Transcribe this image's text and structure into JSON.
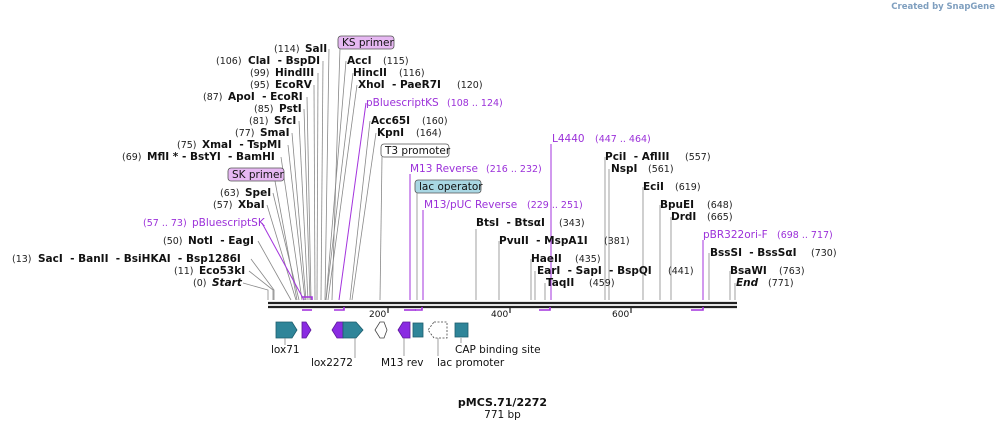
{
  "credit": {
    "prefix": "Created by",
    "brand": "SnapGene"
  },
  "sequence": {
    "name": "pMCS.71/2272",
    "length_label": "771 bp",
    "length": 771
  },
  "ruler": {
    "ticks": [
      200,
      400,
      600
    ]
  },
  "enzymes": [
    {
      "name": "Start",
      "pos": "(0)",
      "italic": true
    },
    {
      "name": "Eco53kI",
      "pos": "(11)"
    },
    {
      "name": "SacI  - BanII  - BsiHKAI  - Bsp1286I",
      "pos": "(13)"
    },
    {
      "name": "NotI  - EagI",
      "pos": "(50)"
    },
    {
      "name": "XbaI",
      "pos": "(57)"
    },
    {
      "name": "SpeI",
      "pos": "(63)"
    },
    {
      "name": "MflI * - BstYI  - BamHI",
      "pos": "(69)"
    },
    {
      "name": "XmaI  - TspMI",
      "pos": "(75)"
    },
    {
      "name": "SmaI",
      "pos": "(77)"
    },
    {
      "name": "SfcI",
      "pos": "(81)"
    },
    {
      "name": "PstI",
      "pos": "(85)"
    },
    {
      "name": "ApoI  - EcoRI",
      "pos": "(87)"
    },
    {
      "name": "EcoRV",
      "pos": "(95)"
    },
    {
      "name": "HindIII",
      "pos": "(99)"
    },
    {
      "name": "ClaI  - BspDI",
      "pos": "(106)"
    },
    {
      "name": "SalI",
      "pos": "(114)"
    },
    {
      "name": "AccI",
      "pos": "(115)"
    },
    {
      "name": "HincII",
      "pos": "(116)"
    },
    {
      "name": "XhoI  - PaeR7I",
      "pos": "(120)"
    },
    {
      "name": "Acc65I",
      "pos": "(160)"
    },
    {
      "name": "KpnI",
      "pos": "(164)"
    },
    {
      "name": "BtsI  - BtsαI",
      "pos": "(343)"
    },
    {
      "name": "PvuII  - MspA1I",
      "pos": "(381)"
    },
    {
      "name": "HaeII",
      "pos": "(435)"
    },
    {
      "name": "EarI  - SapI  - BspQI",
      "pos": "(441)"
    },
    {
      "name": "TaqII",
      "pos": "(459)"
    },
    {
      "name": "PciI  - AflIII",
      "pos": "(557)"
    },
    {
      "name": "NspI",
      "pos": "(561)"
    },
    {
      "name": "EciI",
      "pos": "(619)"
    },
    {
      "name": "BpuEI",
      "pos": "(648)"
    },
    {
      "name": "DrdI",
      "pos": "(665)"
    },
    {
      "name": "BssSI  - BssSαI",
      "pos": "(730)"
    },
    {
      "name": "BsaWI",
      "pos": "(763)"
    },
    {
      "name": "End",
      "pos": "(771)",
      "italic": true
    }
  ],
  "primers": [
    {
      "name": "pBluescriptSK",
      "range": "(57 .. 73)"
    },
    {
      "name": "pBluescriptKS",
      "range": "(108 .. 124)"
    },
    {
      "name": "M13 Reverse",
      "range": "(216 .. 232)"
    },
    {
      "name": "M13/pUC Reverse",
      "range": "(229 .. 251)"
    },
    {
      "name": "L4440",
      "range": "(447 .. 464)"
    },
    {
      "name": "pBR322ori-F",
      "range": "(698 .. 717)"
    }
  ],
  "boxed_labels": [
    {
      "name": "KS primer",
      "fill": "#e6b8f2"
    },
    {
      "name": "SK primer",
      "fill": "#e6b8f2"
    },
    {
      "name": "T3 promoter",
      "fill": "#ffffff"
    },
    {
      "name": "lac operator",
      "fill": "#a9d7e3"
    }
  ],
  "features": [
    "lox71",
    "lox2272",
    "M13 rev",
    "lac promoter",
    "CAP binding site"
  ],
  "colors": {
    "lox": "#2f8599",
    "primer": "#9b30d9",
    "purple_feature": "#8a2be2",
    "backbone": "#222222"
  }
}
